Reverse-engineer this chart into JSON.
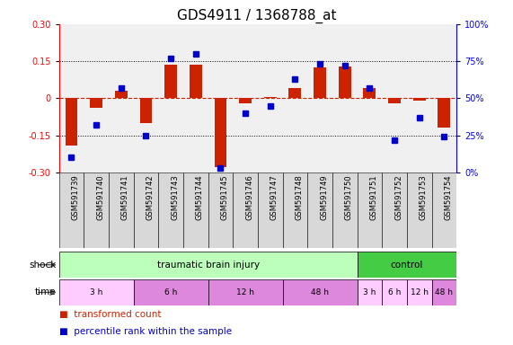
{
  "title": "GDS4911 / 1368788_at",
  "samples": [
    "GSM591739",
    "GSM591740",
    "GSM591741",
    "GSM591742",
    "GSM591743",
    "GSM591744",
    "GSM591745",
    "GSM591746",
    "GSM591747",
    "GSM591748",
    "GSM591749",
    "GSM591750",
    "GSM591751",
    "GSM591752",
    "GSM591753",
    "GSM591754"
  ],
  "red_values": [
    -0.19,
    -0.04,
    0.03,
    -0.1,
    0.135,
    0.135,
    -0.28,
    -0.02,
    0.005,
    0.04,
    0.125,
    0.13,
    0.04,
    -0.02,
    -0.01,
    -0.12
  ],
  "blue_values": [
    10,
    32,
    57,
    25,
    77,
    80,
    3,
    40,
    45,
    63,
    73,
    72,
    57,
    22,
    37,
    24
  ],
  "ylim_left": [
    -0.3,
    0.3
  ],
  "ylim_right": [
    0,
    100
  ],
  "yticks_left": [
    -0.3,
    -0.15,
    0.0,
    0.15,
    0.3
  ],
  "yticks_right": [
    0,
    25,
    50,
    75,
    100
  ],
  "hlines_dotted": [
    0.15,
    -0.15
  ],
  "hline_zero": 0.0,
  "shock_label": "shock",
  "time_label": "time",
  "shock_groups": [
    {
      "label": "traumatic brain injury",
      "start": 0,
      "end": 12,
      "color": "#bbffbb"
    },
    {
      "label": "control",
      "start": 12,
      "end": 16,
      "color": "#44cc44"
    }
  ],
  "time_groups": [
    {
      "label": "3 h",
      "start": 0,
      "end": 3,
      "color": "#ffccff"
    },
    {
      "label": "6 h",
      "start": 3,
      "end": 6,
      "color": "#dd88dd"
    },
    {
      "label": "12 h",
      "start": 6,
      "end": 9,
      "color": "#dd88dd"
    },
    {
      "label": "48 h",
      "start": 9,
      "end": 12,
      "color": "#dd88dd"
    },
    {
      "label": "3 h",
      "start": 12,
      "end": 13,
      "color": "#ffccff"
    },
    {
      "label": "6 h",
      "start": 13,
      "end": 14,
      "color": "#ffccff"
    },
    {
      "label": "12 h",
      "start": 14,
      "end": 15,
      "color": "#ffccff"
    },
    {
      "label": "48 h",
      "start": 15,
      "end": 16,
      "color": "#dd88dd"
    }
  ],
  "bar_color": "#cc2200",
  "square_color": "#0000cc",
  "plot_bg_color": "#f0f0f0",
  "zero_line_color": "#cc2200",
  "title_fontsize": 11,
  "tick_label_fontsize": 7,
  "sample_label_fontsize": 6,
  "legend_fontsize": 7.5,
  "bar_width": 0.5
}
